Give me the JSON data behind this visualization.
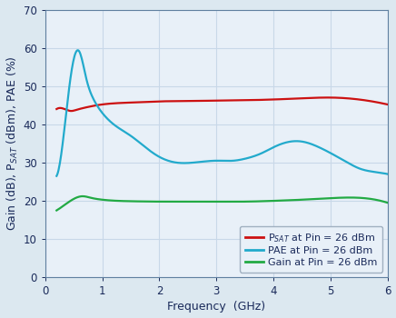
{
  "xlabel": "Frequency  (GHz)",
  "ylim": [
    0,
    70
  ],
  "xlim": [
    0,
    6
  ],
  "yticks": [
    0,
    10,
    20,
    30,
    40,
    50,
    60,
    70
  ],
  "xticks": [
    0,
    1,
    2,
    3,
    4,
    5,
    6
  ],
  "grid_color": "#c8d8e8",
  "plot_bg_color": "#e8f0f8",
  "fig_bg_color": "#dce8f0",
  "psat_color": "#cc1111",
  "pae_color": "#22aacc",
  "gain_color": "#22aa44",
  "line_width": 1.6,
  "psat_x": [
    0.2,
    0.3,
    0.45,
    0.55,
    0.65,
    0.8,
    1.0,
    1.5,
    2.0,
    2.5,
    3.0,
    3.5,
    4.0,
    4.5,
    5.0,
    5.5,
    6.0
  ],
  "psat_y": [
    44.0,
    44.2,
    43.5,
    43.8,
    44.2,
    44.7,
    45.2,
    45.7,
    46.0,
    46.1,
    46.2,
    46.3,
    46.5,
    46.8,
    47.0,
    46.5,
    45.2
  ],
  "pae_x": [
    0.2,
    0.28,
    0.4,
    0.5,
    0.6,
    0.72,
    0.85,
    1.0,
    1.2,
    1.5,
    1.8,
    2.0,
    2.3,
    2.6,
    3.0,
    3.3,
    3.5,
    3.8,
    4.0,
    4.3,
    4.5,
    4.8,
    5.0,
    5.3,
    5.5,
    5.8,
    6.0
  ],
  "pae_y": [
    26.5,
    32.0,
    47.0,
    57.0,
    59.0,
    52.0,
    46.5,
    43.0,
    40.0,
    37.0,
    33.5,
    31.5,
    30.0,
    30.0,
    30.5,
    30.5,
    31.0,
    32.5,
    34.0,
    35.5,
    35.5,
    34.0,
    32.5,
    30.0,
    28.5,
    27.5,
    27.0
  ],
  "gain_x": [
    0.2,
    0.3,
    0.5,
    0.65,
    0.8,
    1.0,
    1.5,
    2.0,
    2.5,
    3.0,
    3.5,
    4.0,
    4.5,
    5.0,
    5.5,
    6.0
  ],
  "gain_y": [
    17.5,
    18.5,
    20.5,
    21.2,
    20.8,
    20.3,
    19.9,
    19.8,
    19.8,
    19.8,
    19.8,
    20.0,
    20.3,
    20.7,
    20.8,
    19.5
  ],
  "legend_labels": [
    "P$_{SAT}$ at Pin = 26 dBm",
    "PAE at Pin = 26 dBm",
    "Gain at Pin = 26 dBm"
  ],
  "legend_colors": [
    "#cc1111",
    "#22aacc",
    "#22aa44"
  ],
  "label_color": "#1a2a5a",
  "tick_color": "#1a2a5a",
  "font_size_axis": 9,
  "font_size_legend": 8,
  "font_size_ticks": 8.5
}
